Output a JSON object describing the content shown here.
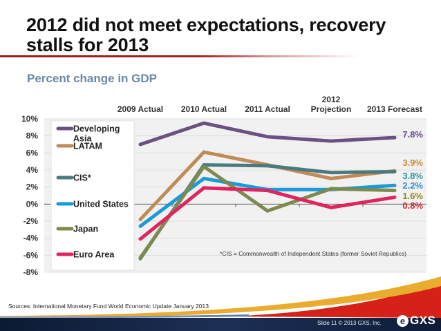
{
  "slide": {
    "title": "2012 did not meet expectations, recovery stalls for 2013",
    "subtitle": "Percent change in GDP",
    "sources": "Sources: International Monetary Fund World Economic Update January 2013",
    "footer": "Slide 11   © 2013 GXS, Inc.",
    "logo_text": "GXS",
    "logo_icon": "gxs-e-logo-icon"
  },
  "chart_data": {
    "type": "line",
    "title": "Percent change in GDP",
    "xlabel": "",
    "ylabel": "",
    "categories": [
      "2009 Actual",
      "2010 Actual",
      "2011 Actual",
      "2012 Projection",
      "2013 Forecast"
    ],
    "category_lines": [
      [
        "2009 Actual"
      ],
      [
        "2010 Actual"
      ],
      [
        "2011 Actual"
      ],
      [
        "2012",
        "Projection"
      ],
      [
        "2013 Forecast"
      ]
    ],
    "ylim": [
      -8,
      10
    ],
    "yticks": [
      10,
      8,
      6,
      4,
      2,
      0,
      -2,
      -4,
      -6,
      -8
    ],
    "ytick_labels": [
      "10%",
      "8%",
      "6%",
      "4%",
      "2%",
      "0%",
      "-2%",
      "-4%",
      "-6%",
      "-8%"
    ],
    "grid": true,
    "x_axis_position": "top",
    "legend_position": "left-inside",
    "series": [
      {
        "name": "Developing Asia",
        "legend_lines": [
          "Developing",
          "Asia"
        ],
        "color": "#6b5182",
        "values": [
          7.0,
          9.5,
          7.9,
          7.4,
          7.8
        ],
        "end_label": "7.8%",
        "end_label_color": "#6b4f92"
      },
      {
        "name": "LATAM",
        "legend_lines": [
          "LATAM"
        ],
        "color": "#bf8b56",
        "values": [
          -1.8,
          6.1,
          4.6,
          3.0,
          3.9
        ],
        "end_label": "3.9%",
        "end_label_color": "#cc8f32"
      },
      {
        "name": "CIS*",
        "legend_lines": [
          "CIS*"
        ],
        "color": "#4a7a80",
        "values": [
          -6.4,
          4.6,
          4.5,
          3.7,
          3.8
        ],
        "end_label": "3.8%",
        "end_label_color": "#2a9c9a"
      },
      {
        "name": "United States",
        "legend_lines": [
          "United States"
        ],
        "color": "#1a9bd7",
        "values": [
          -2.6,
          3.0,
          1.7,
          1.7,
          2.2
        ],
        "end_label": "2.2%",
        "end_label_color": "#3a90dc"
      },
      {
        "name": "Japan",
        "legend_lines": [
          "Japan"
        ],
        "color": "#7d8a4f",
        "values": [
          -6.3,
          4.4,
          -0.8,
          1.8,
          1.6
        ],
        "end_label": "1.6%",
        "end_label_color": "#8f8a1c"
      },
      {
        "name": "Euro Area",
        "legend_lines": [
          "Euro Area"
        ],
        "color": "#e0245e",
        "values": [
          -4.1,
          1.9,
          1.6,
          -0.4,
          0.8
        ],
        "end_label": "0.8%",
        "end_label_color": "#d42a2a"
      }
    ],
    "annotations": [
      "*CIS = Commonwealth of Independent States (former Soviet Republics)"
    ]
  }
}
